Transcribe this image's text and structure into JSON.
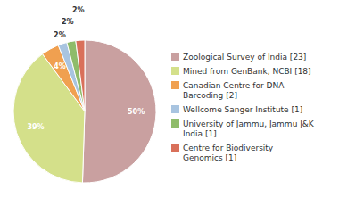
{
  "chart_data": {
    "type": "pie",
    "categories": [
      "Zoological Survey of India [23]",
      "Mined from GenBank, NCBI [18]",
      "Canadian Centre for DNA\nBarcoding [2]",
      "Wellcome Sanger Institute [1]",
      "University of Jammu, Jammu J&K\nIndia [1]",
      "Centre for Biodiversity\nGenomics [1]"
    ],
    "values": [
      50,
      39,
      4,
      2,
      2,
      2
    ],
    "value_labels": [
      "50%",
      "39%",
      "4%",
      "2%",
      "2%",
      "2%"
    ],
    "colors": [
      "#c9a0a0",
      "#d4e08a",
      "#f0a050",
      "#a8c4e0",
      "#8fbc6a",
      "#d9705a"
    ],
    "data_labels": true,
    "legend": "right"
  }
}
